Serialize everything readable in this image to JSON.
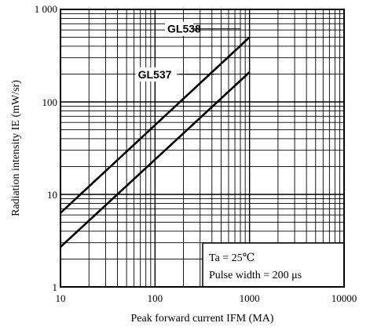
{
  "chart_data": {
    "type": "line",
    "xscale": "log",
    "yscale": "log",
    "xlim": [
      10,
      10000
    ],
    "ylim": [
      1,
      1000
    ],
    "xlabel": "Peak forward current IFM (MA)",
    "ylabel": "Radiation intensity IE (mW/sr)",
    "x_ticks": [
      {
        "value": 10,
        "label": "10"
      },
      {
        "value": 100,
        "label": "100"
      },
      {
        "value": 1000,
        "label": "1000"
      },
      {
        "value": 10000,
        "label": "10000"
      }
    ],
    "y_ticks": [
      {
        "value": 1,
        "label": "1"
      },
      {
        "value": 10,
        "label": "10"
      },
      {
        "value": 100,
        "label": "100"
      },
      {
        "value": 1000,
        "label": "1 000"
      }
    ],
    "grid": true,
    "series": [
      {
        "name": "GL538",
        "x": [
          10,
          1000
        ],
        "y": [
          6.3,
          500
        ]
      },
      {
        "name": "GL537",
        "x": [
          10,
          1000
        ],
        "y": [
          2.7,
          210
        ]
      }
    ],
    "annotation_lines": [
      "Ta = 25℃",
      "Pulse width = 200 μs"
    ]
  },
  "colors": {
    "line": "#000000",
    "grid": "#000000",
    "background": "#ffffff"
  }
}
